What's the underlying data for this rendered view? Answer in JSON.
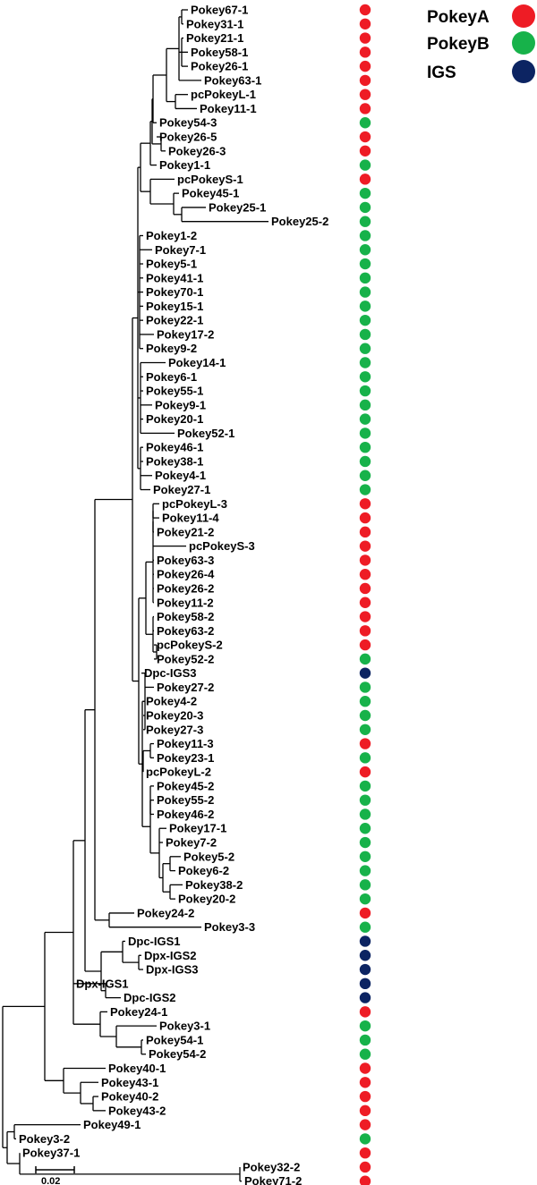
{
  "legend": [
    {
      "key": "A",
      "label": "PokeyA",
      "color": "#ee1c25"
    },
    {
      "key": "B",
      "label": "PokeyB",
      "color": "#17b24a"
    },
    {
      "key": "I",
      "label": "IGS",
      "color": "#0c2462"
    }
  ],
  "scale_bar": {
    "label": "0.02"
  },
  "leaves": [
    {
      "name": "Pokey67-1",
      "group": "A"
    },
    {
      "name": "Pokey31-1",
      "group": "A"
    },
    {
      "name": "Pokey21-1",
      "group": "A"
    },
    {
      "name": "Pokey58-1",
      "group": "A"
    },
    {
      "name": "Pokey26-1",
      "group": "A"
    },
    {
      "name": "Pokey63-1",
      "group": "A"
    },
    {
      "name": "pcPokeyL-1",
      "group": "A"
    },
    {
      "name": "Pokey11-1",
      "group": "A"
    },
    {
      "name": "Pokey54-3",
      "group": "B"
    },
    {
      "name": "Pokey26-5",
      "group": "A"
    },
    {
      "name": "Pokey26-3",
      "group": "A"
    },
    {
      "name": "Pokey1-1",
      "group": "B"
    },
    {
      "name": "pcPokeyS-1",
      "group": "A"
    },
    {
      "name": "Pokey45-1",
      "group": "B"
    },
    {
      "name": "Pokey25-1",
      "group": "B"
    },
    {
      "name": "Pokey25-2",
      "group": "B"
    },
    {
      "name": "Pokey1-2",
      "group": "B"
    },
    {
      "name": "Pokey7-1",
      "group": "B"
    },
    {
      "name": "Pokey5-1",
      "group": "B"
    },
    {
      "name": "Pokey41-1",
      "group": "B"
    },
    {
      "name": "Pokey70-1",
      "group": "B"
    },
    {
      "name": "Pokey15-1",
      "group": "B"
    },
    {
      "name": "Pokey22-1",
      "group": "B"
    },
    {
      "name": "Pokey17-2",
      "group": "B"
    },
    {
      "name": "Pokey9-2",
      "group": "B"
    },
    {
      "name": "Pokey14-1",
      "group": "B"
    },
    {
      "name": "Pokey6-1",
      "group": "B"
    },
    {
      "name": "Pokey55-1",
      "group": "B"
    },
    {
      "name": "Pokey9-1",
      "group": "B"
    },
    {
      "name": "Pokey20-1",
      "group": "B"
    },
    {
      "name": "Pokey52-1",
      "group": "B"
    },
    {
      "name": "Pokey46-1",
      "group": "B"
    },
    {
      "name": "Pokey38-1",
      "group": "B"
    },
    {
      "name": "Pokey4-1",
      "group": "B"
    },
    {
      "name": "Pokey27-1",
      "group": "B"
    },
    {
      "name": "pcPokeyL-3",
      "group": "A"
    },
    {
      "name": "Pokey11-4",
      "group": "A"
    },
    {
      "name": "Pokey21-2",
      "group": "A"
    },
    {
      "name": "pcPokeyS-3",
      "group": "A"
    },
    {
      "name": "Pokey63-3",
      "group": "A"
    },
    {
      "name": "Pokey26-4",
      "group": "A"
    },
    {
      "name": "Pokey26-2",
      "group": "A"
    },
    {
      "name": "Pokey11-2",
      "group": "A"
    },
    {
      "name": "Pokey58-2",
      "group": "A"
    },
    {
      "name": "Pokey63-2",
      "group": "A"
    },
    {
      "name": "pcPokeyS-2",
      "group": "A"
    },
    {
      "name": "Pokey52-2",
      "group": "B"
    },
    {
      "name": "Dpc-IGS3",
      "group": "I"
    },
    {
      "name": "Pokey27-2",
      "group": "B"
    },
    {
      "name": "Pokey4-2",
      "group": "B"
    },
    {
      "name": "Pokey20-3",
      "group": "B"
    },
    {
      "name": "Pokey27-3",
      "group": "B"
    },
    {
      "name": "Pokey11-3",
      "group": "A"
    },
    {
      "name": "Pokey23-1",
      "group": "B"
    },
    {
      "name": "pcPokeyL-2",
      "group": "A"
    },
    {
      "name": "Pokey45-2",
      "group": "B"
    },
    {
      "name": "Pokey55-2",
      "group": "B"
    },
    {
      "name": "Pokey46-2",
      "group": "B"
    },
    {
      "name": "Pokey17-1",
      "group": "B"
    },
    {
      "name": "Pokey7-2",
      "group": "B"
    },
    {
      "name": "Pokey5-2",
      "group": "B"
    },
    {
      "name": "Pokey6-2",
      "group": "B"
    },
    {
      "name": "Pokey38-2",
      "group": "B"
    },
    {
      "name": "Pokey20-2",
      "group": "B"
    },
    {
      "name": "Pokey24-2",
      "group": "A"
    },
    {
      "name": "Pokey3-3",
      "group": "B"
    },
    {
      "name": "Dpc-IGS1",
      "group": "I"
    },
    {
      "name": "Dpx-IGS2",
      "group": "I"
    },
    {
      "name": "Dpx-IGS3",
      "group": "I"
    },
    {
      "name": "Dpx-IGS1",
      "group": "I"
    },
    {
      "name": "Dpc-IGS2",
      "group": "I"
    },
    {
      "name": "Pokey24-1",
      "group": "A"
    },
    {
      "name": "Pokey3-1",
      "group": "B"
    },
    {
      "name": "Pokey54-1",
      "group": "B"
    },
    {
      "name": "Pokey54-2",
      "group": "B"
    },
    {
      "name": "Pokey40-1",
      "group": "A"
    },
    {
      "name": "Pokey43-1",
      "group": "A"
    },
    {
      "name": "Pokey40-2",
      "group": "A"
    },
    {
      "name": "Pokey43-2",
      "group": "A"
    },
    {
      "name": "Pokey49-1",
      "group": "A"
    },
    {
      "name": "Pokey3-2",
      "group": "B"
    },
    {
      "name": "Pokey37-1",
      "group": "A"
    },
    {
      "name": "Pokey32-2",
      "group": "A"
    },
    {
      "name": "Pokey71-2",
      "group": "A"
    }
  ]
}
